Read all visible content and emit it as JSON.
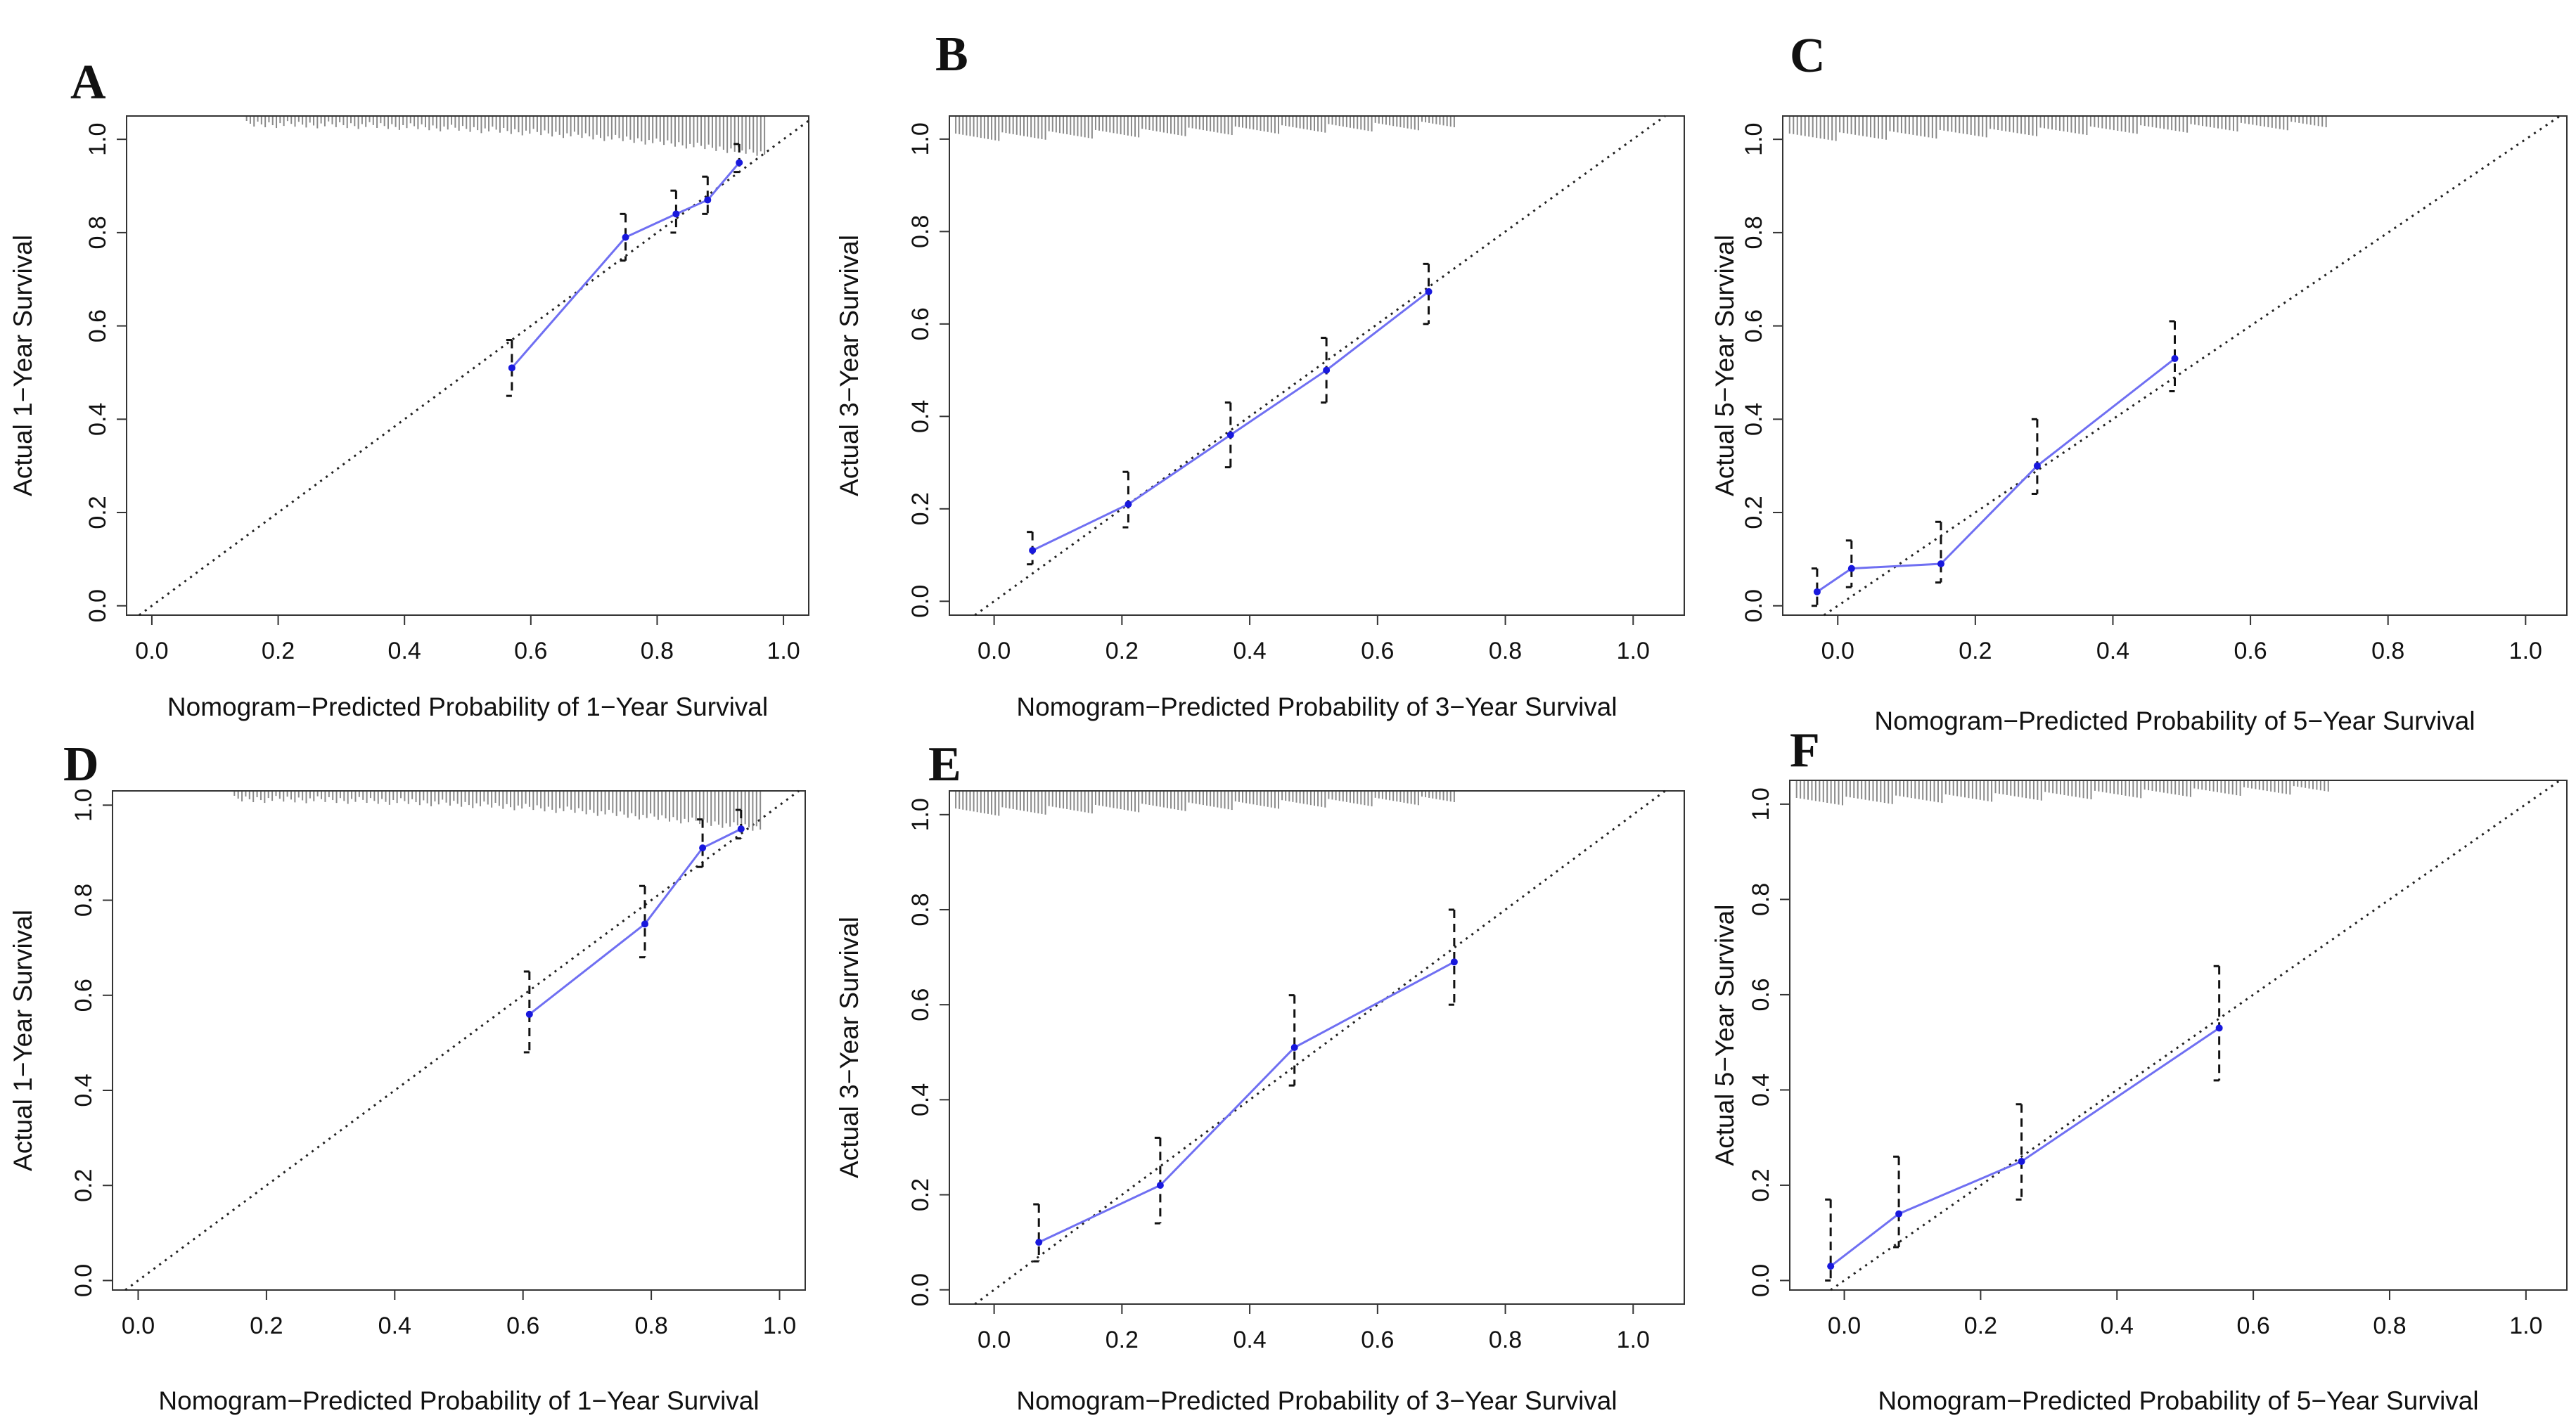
{
  "colors": {
    "calibration_line": "#6f6ff2",
    "calibration_point": "#1818dd",
    "error_bar": "#111111",
    "ideal_line": "#222222",
    "rug": "#8a8a8a",
    "frame": "#333333"
  },
  "chart_data": [
    {
      "panel": "A",
      "type": "line",
      "xlabel": "Nomogram−Predicted Probability of 1−Year Survival",
      "ylabel": "Actual 1−Year Survival",
      "xlim": [
        -0.04,
        1.04
      ],
      "ylim": [
        -0.02,
        1.05
      ],
      "xticks": [
        "0.0",
        "0.2",
        "0.4",
        "0.6",
        "0.8",
        "1.0"
      ],
      "yticks": [
        "0.0",
        "0.2",
        "0.4",
        "0.6",
        "0.8",
        "1.0"
      ],
      "rug": "top-right",
      "series": [
        {
          "x": [
            0.57,
            0.75,
            0.83,
            0.88,
            0.93
          ],
          "y": [
            0.51,
            0.79,
            0.84,
            0.87,
            0.95
          ],
          "lower": [
            0.45,
            0.74,
            0.8,
            0.84,
            0.93
          ],
          "upper": [
            0.57,
            0.84,
            0.89,
            0.92,
            0.99
          ]
        }
      ]
    },
    {
      "panel": "B",
      "type": "line",
      "xlabel": "Nomogram−Predicted Probability of 3−Year Survival",
      "ylabel": "Actual 3−Year Survival",
      "xlim": [
        -0.07,
        1.08
      ],
      "ylim": [
        -0.03,
        1.05
      ],
      "xticks": [
        "0.0",
        "0.2",
        "0.4",
        "0.6",
        "0.8",
        "1.0"
      ],
      "yticks": [
        "0.0",
        "0.2",
        "0.4",
        "0.6",
        "0.8",
        "1.0"
      ],
      "rug": "top-left",
      "series": [
        {
          "x": [
            0.06,
            0.21,
            0.37,
            0.52,
            0.68
          ],
          "y": [
            0.11,
            0.21,
            0.36,
            0.5,
            0.67
          ],
          "lower": [
            0.08,
            0.16,
            0.29,
            0.43,
            0.6
          ],
          "upper": [
            0.15,
            0.28,
            0.43,
            0.57,
            0.73
          ]
        }
      ]
    },
    {
      "panel": "C",
      "type": "line",
      "xlabel": "Nomogram−Predicted Probability of 5−Year Survival",
      "ylabel": "Actual 5−Year Survival",
      "xlim": [
        -0.08,
        1.06
      ],
      "ylim": [
        -0.02,
        1.05
      ],
      "xticks": [
        "0.0",
        "0.2",
        "0.4",
        "0.6",
        "0.8",
        "1.0"
      ],
      "yticks": [
        "0.0",
        "0.2",
        "0.4",
        "0.6",
        "0.8",
        "1.0"
      ],
      "rug": "top-left",
      "series": [
        {
          "x": [
            -0.03,
            0.02,
            0.15,
            0.29,
            0.49
          ],
          "y": [
            0.03,
            0.08,
            0.09,
            0.3,
            0.53
          ],
          "lower": [
            0.0,
            0.04,
            0.05,
            0.24,
            0.46
          ],
          "upper": [
            0.08,
            0.14,
            0.18,
            0.4,
            0.61
          ]
        }
      ]
    },
    {
      "panel": "D",
      "type": "line",
      "xlabel": "Nomogram−Predicted Probability of 1−Year Survival",
      "ylabel": "Actual 1−Year Survival",
      "xlim": [
        -0.04,
        1.04
      ],
      "ylim": [
        -0.02,
        1.03
      ],
      "xticks": [
        "0.0",
        "0.2",
        "0.4",
        "0.6",
        "0.8",
        "1.0"
      ],
      "yticks": [
        "0.0",
        "0.2",
        "0.4",
        "0.6",
        "0.8",
        "1.0"
      ],
      "rug": "top-right",
      "series": [
        {
          "x": [
            0.61,
            0.79,
            0.88,
            0.94
          ],
          "y": [
            0.56,
            0.75,
            0.91,
            0.95
          ],
          "lower": [
            0.48,
            0.68,
            0.87,
            0.93
          ],
          "upper": [
            0.65,
            0.83,
            0.97,
            0.99
          ]
        }
      ]
    },
    {
      "panel": "E",
      "type": "line",
      "xlabel": "Nomogram−Predicted Probability of 3−Year Survival",
      "ylabel": "Actual 3−Year Survival",
      "xlim": [
        -0.07,
        1.08
      ],
      "ylim": [
        -0.03,
        1.05
      ],
      "xticks": [
        "0.0",
        "0.2",
        "0.4",
        "0.6",
        "0.8",
        "1.0"
      ],
      "yticks": [
        "0.0",
        "0.2",
        "0.4",
        "0.6",
        "0.8",
        "1.0"
      ],
      "rug": "top-left",
      "series": [
        {
          "x": [
            0.07,
            0.26,
            0.47,
            0.72
          ],
          "y": [
            0.1,
            0.22,
            0.51,
            0.69
          ],
          "lower": [
            0.06,
            0.14,
            0.43,
            0.6
          ],
          "upper": [
            0.18,
            0.32,
            0.62,
            0.8
          ]
        }
      ]
    },
    {
      "panel": "F",
      "type": "line",
      "xlabel": "Nomogram−Predicted Probability of 5−Year Survival",
      "ylabel": "Actual 5−Year Survival",
      "xlim": [
        -0.08,
        1.06
      ],
      "ylim": [
        -0.02,
        1.05
      ],
      "xticks": [
        "0.0",
        "0.2",
        "0.4",
        "0.6",
        "0.8",
        "1.0"
      ],
      "yticks": [
        "0.0",
        "0.2",
        "0.4",
        "0.6",
        "0.8",
        "1.0"
      ],
      "rug": "top-left",
      "series": [
        {
          "x": [
            -0.02,
            0.08,
            0.26,
            0.55
          ],
          "y": [
            0.03,
            0.14,
            0.25,
            0.53
          ],
          "lower": [
            0.0,
            0.07,
            0.17,
            0.42
          ],
          "upper": [
            0.17,
            0.26,
            0.37,
            0.66
          ]
        }
      ]
    }
  ]
}
